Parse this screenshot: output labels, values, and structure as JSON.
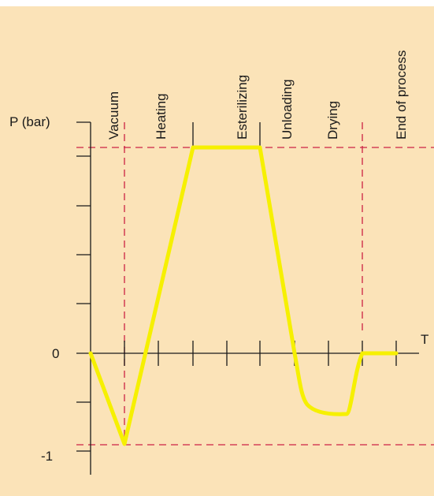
{
  "colors": {
    "background": "#fbe3b8",
    "axis": "#1a1a1a",
    "guide_lines": "#cc2244",
    "curve": "#f6f000"
  },
  "labels": {
    "y_axis": "P (bar)",
    "x_axis": "T",
    "y_zero": "0",
    "y_min": "-1"
  },
  "phases": [
    "Vacuum",
    "Heating",
    "Esterilizing",
    "Unloading",
    "Drying",
    "End of process"
  ]
}
